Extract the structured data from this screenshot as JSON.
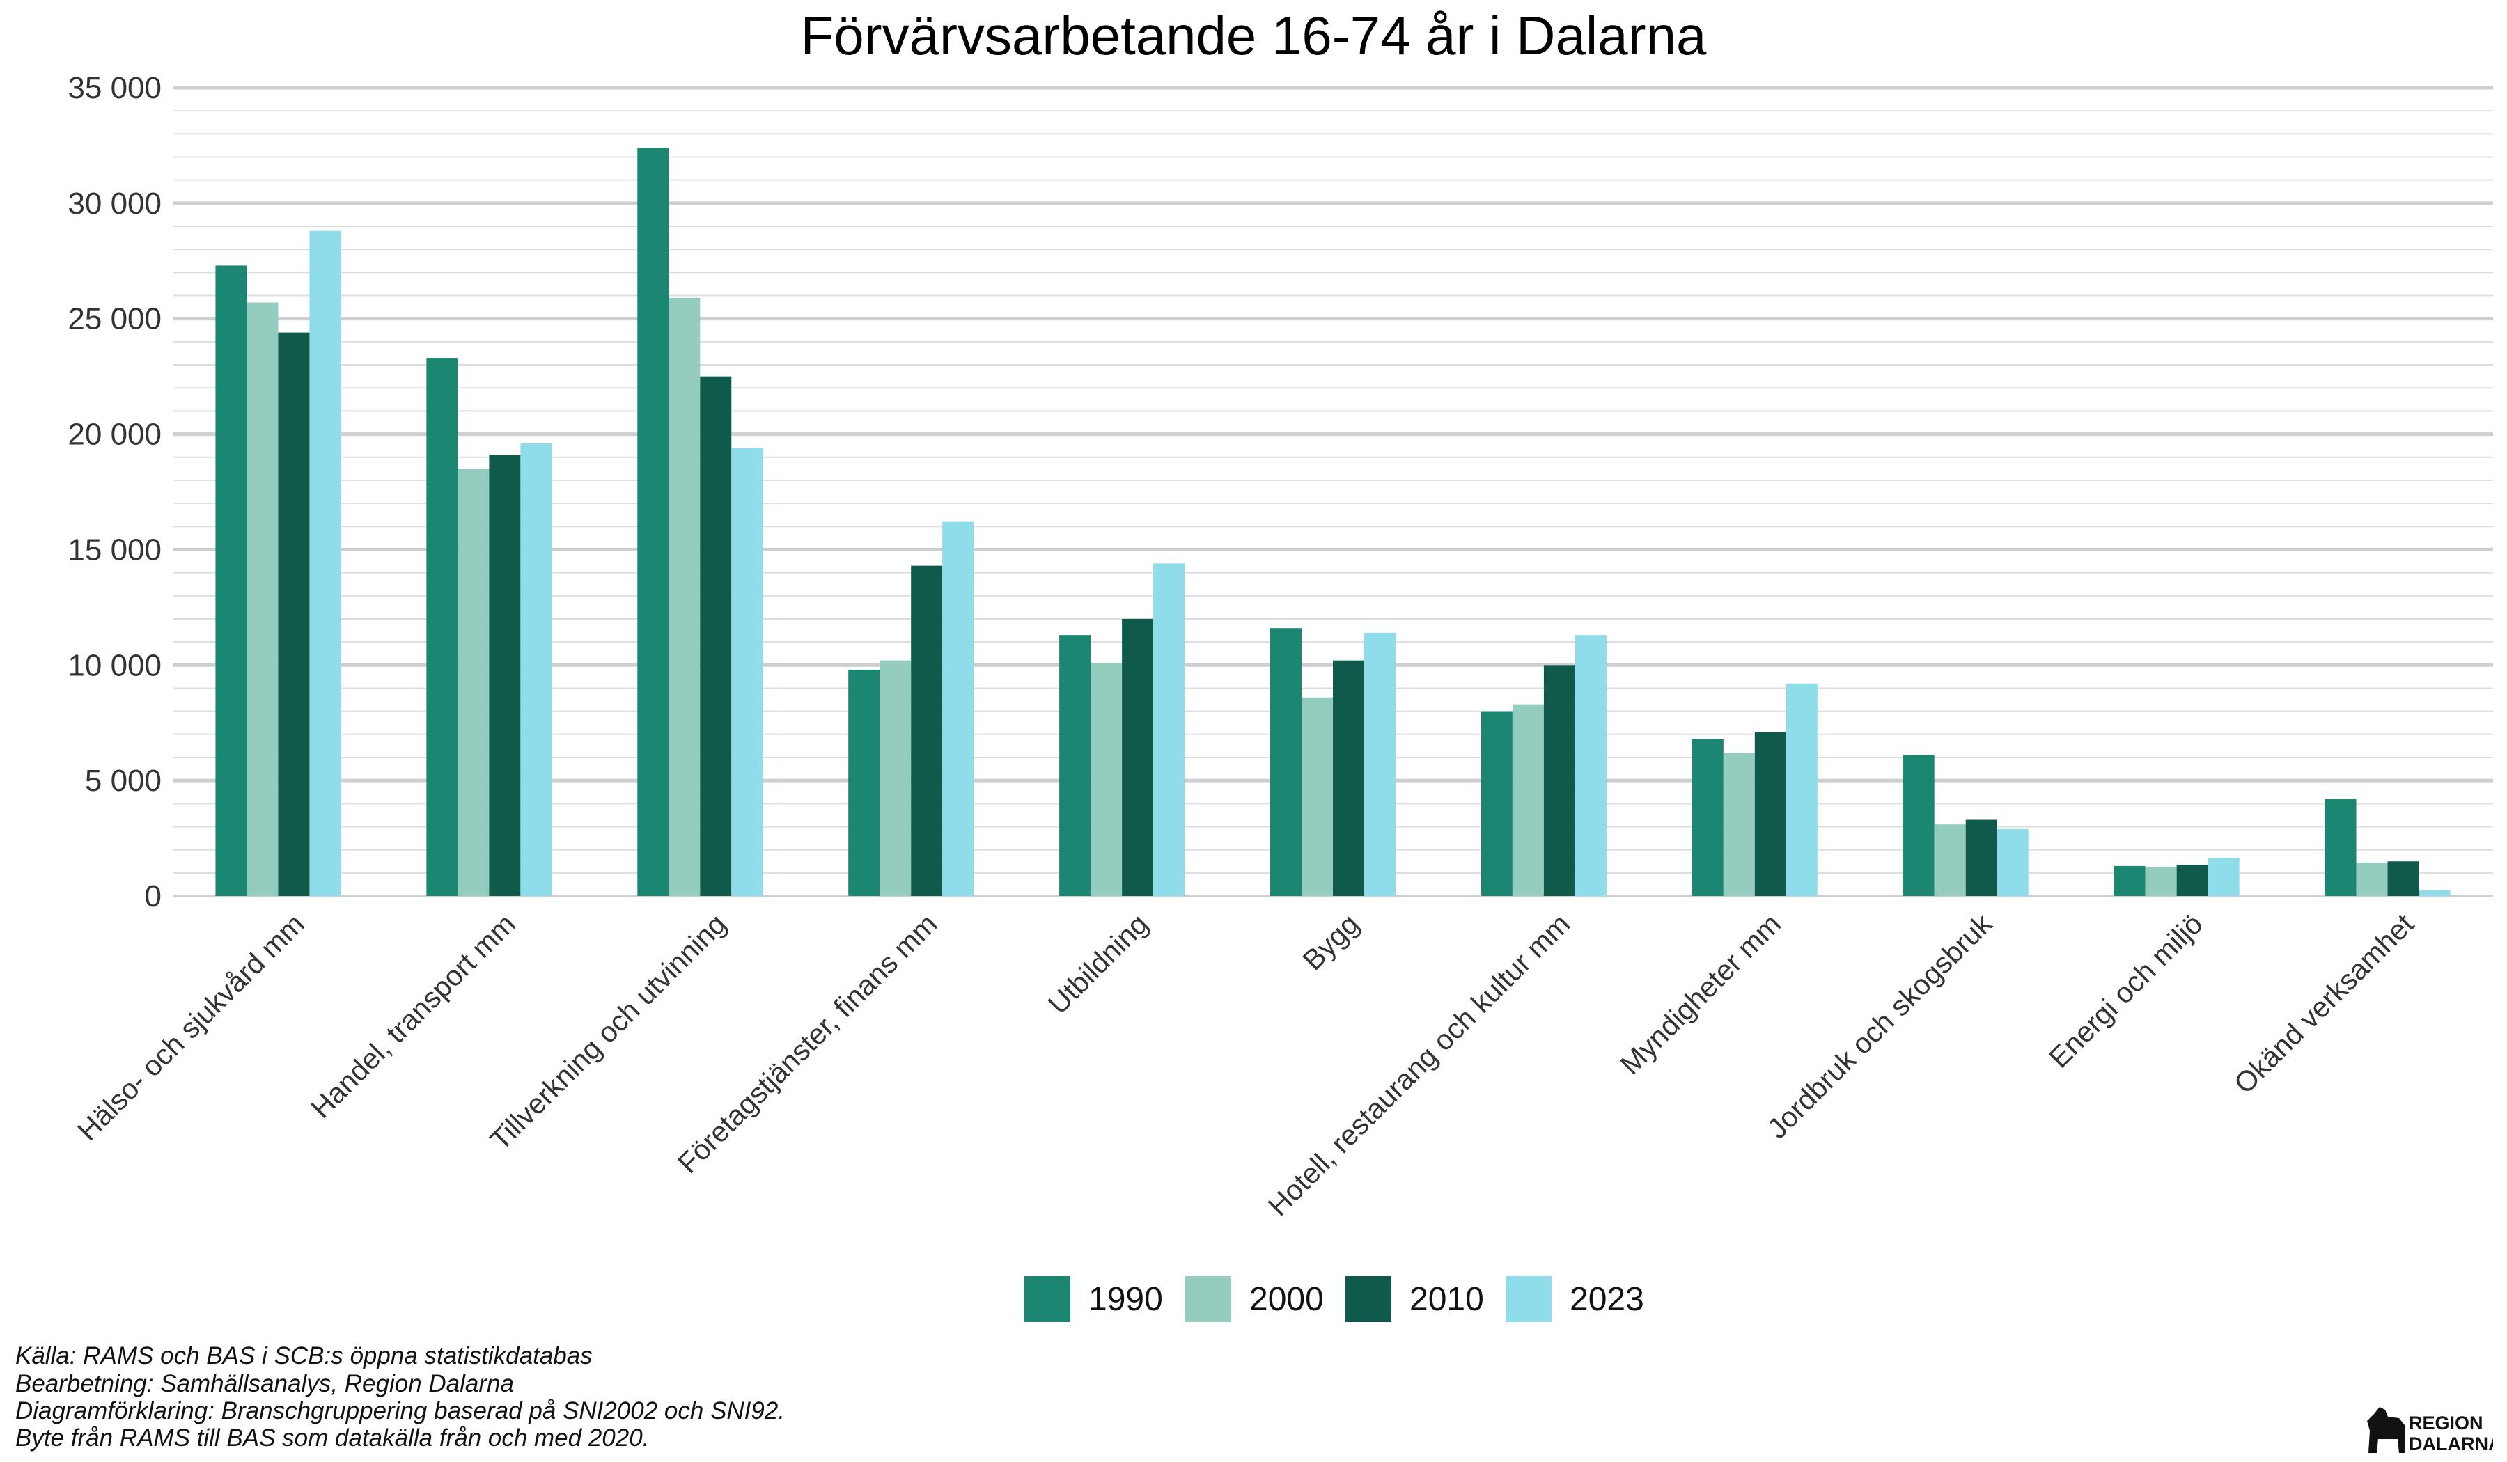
{
  "chart_data": {
    "type": "bar",
    "title": "Förvärvsarbetande 16-74 år i Dalarna",
    "xlabel": "",
    "ylabel": "",
    "ylim": [
      0,
      35000
    ],
    "yticks": [
      0,
      5000,
      10000,
      15000,
      20000,
      25000,
      30000,
      35000
    ],
    "ytick_labels": [
      "0",
      "5 000",
      "10 000",
      "15 000",
      "20 000",
      "25 000",
      "30 000",
      "35 000"
    ],
    "grid": true,
    "legend_position": "bottom",
    "categories": [
      "Hälso- och sjukvård mm",
      "Handel, transport mm",
      "Tillverkning och utvinning",
      "Företagstjänster, finans mm",
      "Utbildning",
      "Bygg",
      "Hotell, restaurang och kultur mm",
      "Myndigheter mm",
      "Jordbruk och skogsbruk",
      "Energi och miljö",
      "Okänd verksamhet"
    ],
    "series": [
      {
        "name": "1990",
        "color": "#1b8772",
        "values": [
          27300,
          23300,
          32400,
          9800,
          11300,
          11600,
          8000,
          6800,
          6100,
          1300,
          4200
        ]
      },
      {
        "name": "2000",
        "color": "#94cdbf",
        "values": [
          25700,
          18500,
          25900,
          10200,
          10100,
          8600,
          8300,
          6200,
          3100,
          1250,
          1450
        ]
      },
      {
        "name": "2010",
        "color": "#105a4c",
        "values": [
          24400,
          19100,
          22500,
          14300,
          12000,
          10200,
          10000,
          7100,
          3300,
          1350,
          1500
        ]
      },
      {
        "name": "2023",
        "color": "#8fdcea",
        "values": [
          28800,
          19600,
          19400,
          16200,
          14400,
          11400,
          11300,
          9200,
          2900,
          1650,
          250
        ]
      }
    ]
  },
  "captions": [
    "Källa: RAMS och BAS i SCB:s öppna statistikdatabas",
    "Bearbetning: Samhällsanalys, Region Dalarna",
    "Diagramförklaring: Branschgruppering baserad på SNI2002 och SNI92.",
    "Byte från RAMS till BAS som datakälla från och med 2020."
  ],
  "logo": {
    "line1": "REGION",
    "line2": "DALARNA",
    "icon": "dala-horse-icon"
  }
}
